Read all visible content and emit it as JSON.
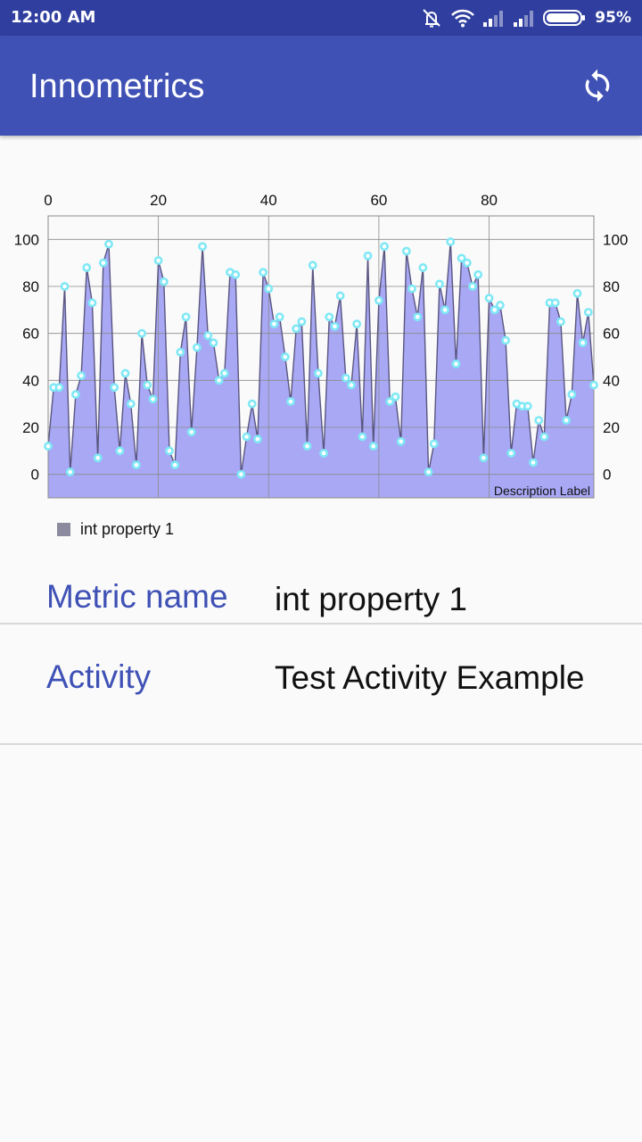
{
  "status_bar": {
    "time": "12:00 AM",
    "battery": "95%",
    "icons": [
      "alarm-muted-icon",
      "wifi-icon",
      "signal-icon",
      "signal-icon",
      "battery-icon"
    ]
  },
  "app_bar": {
    "title": "Innometrics",
    "action_icon": "refresh-icon"
  },
  "chart_data": {
    "type": "area",
    "x_ticks": [
      0,
      20,
      40,
      60,
      80
    ],
    "xlim": [
      0,
      99
    ],
    "y_ticks": [
      0,
      20,
      40,
      60,
      80,
      100
    ],
    "ylim": [
      -10,
      110
    ],
    "grid": true,
    "description": "Description Label",
    "legend_position": "bottom-left",
    "series": [
      {
        "name": "int property 1",
        "color": "#8c8a9e",
        "fill": "#a8a8f5",
        "point_color": "#7fe8f5",
        "values": [
          12,
          37,
          37,
          80,
          1,
          34,
          42,
          88,
          73,
          7,
          90,
          98,
          37,
          10,
          43,
          30,
          4,
          60,
          38,
          32,
          91,
          82,
          10,
          4,
          52,
          67,
          18,
          54,
          97,
          59,
          56,
          40,
          43,
          86,
          85,
          0,
          16,
          30,
          15,
          86,
          79,
          64,
          67,
          50,
          31,
          62,
          65,
          12,
          89,
          43,
          9,
          67,
          63,
          76,
          41,
          38,
          64,
          16,
          93,
          12,
          74,
          97,
          31,
          33,
          14,
          95,
          79,
          67,
          88,
          1,
          13,
          81,
          70,
          99,
          47,
          92,
          90,
          80,
          85,
          7,
          75,
          70,
          72,
          57,
          9,
          30,
          29,
          29,
          5,
          23,
          16,
          73,
          73,
          65,
          23,
          34,
          77,
          56,
          69,
          38
        ]
      }
    ]
  },
  "details": [
    {
      "label": "Metric name",
      "value": "int property 1"
    },
    {
      "label": "Activity",
      "value": "Test Activity Example"
    }
  ]
}
